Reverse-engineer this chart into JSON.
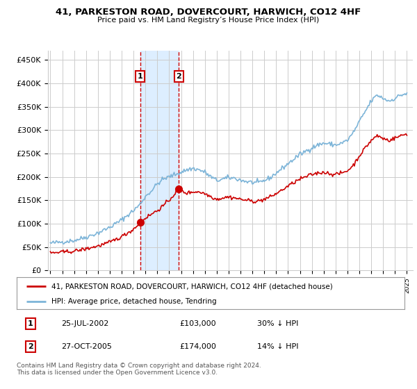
{
  "title": "41, PARKESTON ROAD, DOVERCOURT, HARWICH, CO12 4HF",
  "subtitle": "Price paid vs. HM Land Registry’s House Price Index (HPI)",
  "ylim": [
    0,
    470000
  ],
  "xlim_start": 1994.8,
  "xlim_end": 2025.5,
  "transaction1": {
    "date": "25-JUL-2002",
    "price": 103000,
    "label": "1",
    "year": 2002.56
  },
  "transaction2": {
    "date": "27-OCT-2005",
    "price": 174000,
    "label": "2",
    "year": 2005.81
  },
  "legend_house": "41, PARKESTON ROAD, DOVERCOURT, HARWICH, CO12 4HF (detached house)",
  "legend_hpi": "HPI: Average price, detached house, Tendring",
  "footnote": "Contains HM Land Registry data © Crown copyright and database right 2024.\nThis data is licensed under the Open Government Licence v3.0.",
  "hpi_color": "#7cb4d8",
  "price_color": "#cc0000",
  "shading_color": "#ddeeff",
  "grid_color": "#cccccc",
  "background_color": "#ffffff",
  "hpi_keypoints": [
    [
      1995.0,
      58000
    ],
    [
      1996.0,
      61000
    ],
    [
      1997.0,
      64000
    ],
    [
      1998.0,
      71000
    ],
    [
      1999.0,
      80000
    ],
    [
      2000.0,
      92000
    ],
    [
      2001.0,
      108000
    ],
    [
      2002.0,
      128000
    ],
    [
      2002.5,
      140000
    ],
    [
      2003.0,
      158000
    ],
    [
      2003.5,
      170000
    ],
    [
      2004.0,
      185000
    ],
    [
      2004.5,
      195000
    ],
    [
      2005.0,
      200000
    ],
    [
      2005.5,
      205000
    ],
    [
      2006.0,
      210000
    ],
    [
      2006.5,
      215000
    ],
    [
      2007.0,
      218000
    ],
    [
      2007.5,
      215000
    ],
    [
      2008.0,
      210000
    ],
    [
      2008.5,
      200000
    ],
    [
      2009.0,
      192000
    ],
    [
      2009.5,
      195000
    ],
    [
      2010.0,
      198000
    ],
    [
      2010.5,
      197000
    ],
    [
      2011.0,
      193000
    ],
    [
      2011.5,
      190000
    ],
    [
      2012.0,
      188000
    ],
    [
      2012.5,
      187000
    ],
    [
      2013.0,
      192000
    ],
    [
      2013.5,
      198000
    ],
    [
      2014.0,
      208000
    ],
    [
      2014.5,
      218000
    ],
    [
      2015.0,
      228000
    ],
    [
      2015.5,
      238000
    ],
    [
      2016.0,
      248000
    ],
    [
      2016.5,
      255000
    ],
    [
      2017.0,
      262000
    ],
    [
      2017.5,
      268000
    ],
    [
      2018.0,
      272000
    ],
    [
      2018.5,
      270000
    ],
    [
      2019.0,
      268000
    ],
    [
      2019.5,
      272000
    ],
    [
      2020.0,
      278000
    ],
    [
      2020.5,
      295000
    ],
    [
      2021.0,
      318000
    ],
    [
      2021.5,
      340000
    ],
    [
      2022.0,
      362000
    ],
    [
      2022.5,
      375000
    ],
    [
      2023.0,
      368000
    ],
    [
      2023.5,
      362000
    ],
    [
      2024.0,
      368000
    ],
    [
      2024.5,
      375000
    ],
    [
      2025.0,
      378000
    ]
  ],
  "price_keypoints": [
    [
      1995.0,
      37000
    ],
    [
      1996.0,
      39000
    ],
    [
      1997.0,
      41000
    ],
    [
      1998.0,
      46000
    ],
    [
      1999.0,
      52000
    ],
    [
      2000.0,
      60000
    ],
    [
      2001.0,
      72000
    ],
    [
      2002.0,
      88000
    ],
    [
      2002.56,
      103000
    ],
    [
      2003.0,
      112000
    ],
    [
      2003.5,
      120000
    ],
    [
      2004.0,
      128000
    ],
    [
      2004.5,
      138000
    ],
    [
      2005.0,
      150000
    ],
    [
      2005.81,
      174000
    ],
    [
      2006.0,
      170000
    ],
    [
      2006.5,
      165000
    ],
    [
      2007.0,
      168000
    ],
    [
      2007.5,
      168000
    ],
    [
      2008.0,
      164000
    ],
    [
      2008.5,
      158000
    ],
    [
      2009.0,
      152000
    ],
    [
      2009.5,
      155000
    ],
    [
      2010.0,
      157000
    ],
    [
      2010.5,
      155000
    ],
    [
      2011.0,
      152000
    ],
    [
      2011.5,
      150000
    ],
    [
      2012.0,
      148000
    ],
    [
      2012.5,
      148000
    ],
    [
      2013.0,
      152000
    ],
    [
      2013.5,
      157000
    ],
    [
      2014.0,
      164000
    ],
    [
      2014.5,
      172000
    ],
    [
      2015.0,
      180000
    ],
    [
      2015.5,
      188000
    ],
    [
      2016.0,
      195000
    ],
    [
      2016.5,
      200000
    ],
    [
      2017.0,
      205000
    ],
    [
      2017.5,
      208000
    ],
    [
      2018.0,
      210000
    ],
    [
      2018.5,
      207000
    ],
    [
      2019.0,
      205000
    ],
    [
      2019.5,
      208000
    ],
    [
      2020.0,
      213000
    ],
    [
      2020.5,
      225000
    ],
    [
      2021.0,
      245000
    ],
    [
      2021.5,
      262000
    ],
    [
      2022.0,
      278000
    ],
    [
      2022.5,
      288000
    ],
    [
      2023.0,
      282000
    ],
    [
      2023.5,
      278000
    ],
    [
      2024.0,
      283000
    ],
    [
      2024.5,
      288000
    ],
    [
      2025.0,
      292000
    ]
  ]
}
